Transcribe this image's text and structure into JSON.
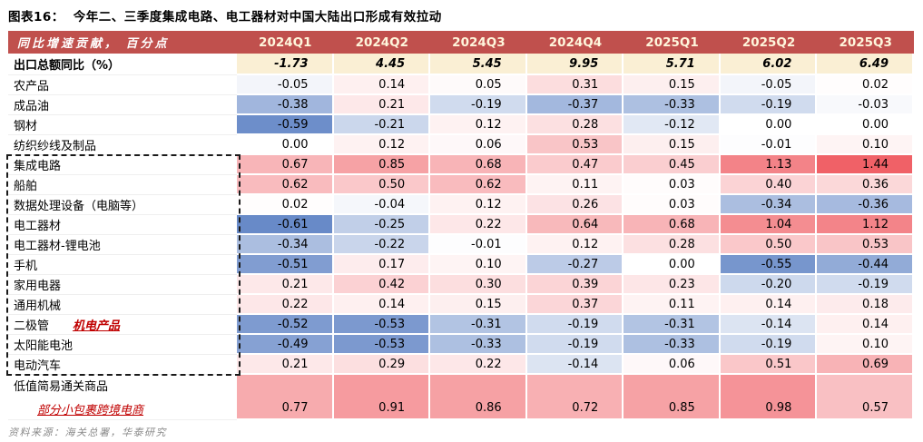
{
  "title": {
    "prefix": "图表16：",
    "text": "今年二、三季度集成电路、电工器材对中国大陆出口形成有效拉动"
  },
  "footer": "资料来源：海关总署，华泰研究",
  "colors": {
    "header_bg": "#C0504D",
    "header_text": "#FFFFFF",
    "header_quarter_text": "#FFF6DC",
    "total_row_bg": "#FAEFD4",
    "heat_positive_max": "#F06167",
    "heat_negative_max": "#688AC8",
    "annotation_red": "#C00000",
    "dashed_box": "#1A1A1A"
  },
  "chart_data": {
    "type": "heatmap",
    "title": "今年二、三季度集成电路、电工器材对中国大陆出口形成有效拉动",
    "corner_label": "同比增速贡献， 百分点",
    "columns": [
      "2024Q1",
      "2024Q2",
      "2024Q3",
      "2024Q4",
      "2025Q1",
      "2025Q2",
      "2025Q3"
    ],
    "total_row": {
      "label": "出口总额同比（%）",
      "values": [
        -1.73,
        4.45,
        5.45,
        9.95,
        5.71,
        6.02,
        6.49
      ]
    },
    "rows": [
      {
        "label": "农产品",
        "values": [
          -0.05,
          0.14,
          0.05,
          0.31,
          0.15,
          -0.05,
          0.02
        ],
        "group": false
      },
      {
        "label": "成品油",
        "values": [
          -0.38,
          0.21,
          -0.19,
          -0.37,
          -0.33,
          -0.19,
          -0.03
        ],
        "group": false
      },
      {
        "label": "钢材",
        "values": [
          -0.59,
          -0.21,
          0.12,
          0.28,
          -0.12,
          0.0,
          0.0
        ],
        "group": false
      },
      {
        "label": "纺织纱线及制品",
        "values": [
          0.0,
          0.12,
          0.06,
          0.53,
          0.15,
          -0.01,
          0.1
        ],
        "group": false
      },
      {
        "label": "集成电路",
        "values": [
          0.67,
          0.85,
          0.68,
          0.47,
          0.45,
          1.13,
          1.44
        ],
        "group": true
      },
      {
        "label": "船舶",
        "values": [
          0.62,
          0.5,
          0.62,
          0.11,
          0.03,
          0.4,
          0.36
        ],
        "group": true
      },
      {
        "label": "数据处理设备（电脑等）",
        "values": [
          0.02,
          -0.04,
          0.12,
          0.26,
          0.03,
          -0.34,
          -0.36
        ],
        "group": true
      },
      {
        "label": "电工器材",
        "values": [
          -0.61,
          -0.25,
          0.22,
          0.64,
          0.68,
          1.04,
          1.12
        ],
        "group": true
      },
      {
        "label": "电工器材-锂电池",
        "values": [
          -0.34,
          -0.22,
          -0.01,
          0.12,
          0.28,
          0.5,
          0.53
        ],
        "group": true
      },
      {
        "label": "手机",
        "values": [
          -0.51,
          0.17,
          0.1,
          -0.27,
          0.0,
          -0.55,
          -0.44
        ],
        "group": true
      },
      {
        "label": "家用电器",
        "values": [
          0.21,
          0.42,
          0.3,
          0.39,
          0.23,
          -0.2,
          -0.19
        ],
        "group": true
      },
      {
        "label": "通用机械",
        "values": [
          0.22,
          0.14,
          0.15,
          0.37,
          0.11,
          0.14,
          0.18
        ],
        "group": true
      },
      {
        "label": "二极管",
        "annotation": "机电产品",
        "values": [
          -0.52,
          -0.53,
          -0.31,
          -0.19,
          -0.31,
          -0.14,
          0.14
        ],
        "group": true
      },
      {
        "label": "太阳能电池",
        "values": [
          -0.49,
          -0.53,
          -0.33,
          -0.19,
          -0.33,
          -0.19,
          0.1
        ],
        "group": true
      },
      {
        "label": "电动汽车",
        "values": [
          0.21,
          0.29,
          0.22,
          -0.14,
          0.06,
          0.51,
          0.69
        ],
        "group": true
      }
    ],
    "tall_row": {
      "label_line1": "低值简易通关商品",
      "label_line2": "部分小包裹跨境电商",
      "values": [
        0.77,
        0.91,
        0.86,
        0.72,
        0.85,
        0.98,
        0.57
      ]
    },
    "group_annotation": "机电产品",
    "scale": {
      "min": -0.61,
      "mid": 0,
      "max": 1.44
    },
    "legend_position": "none",
    "grid": false
  }
}
